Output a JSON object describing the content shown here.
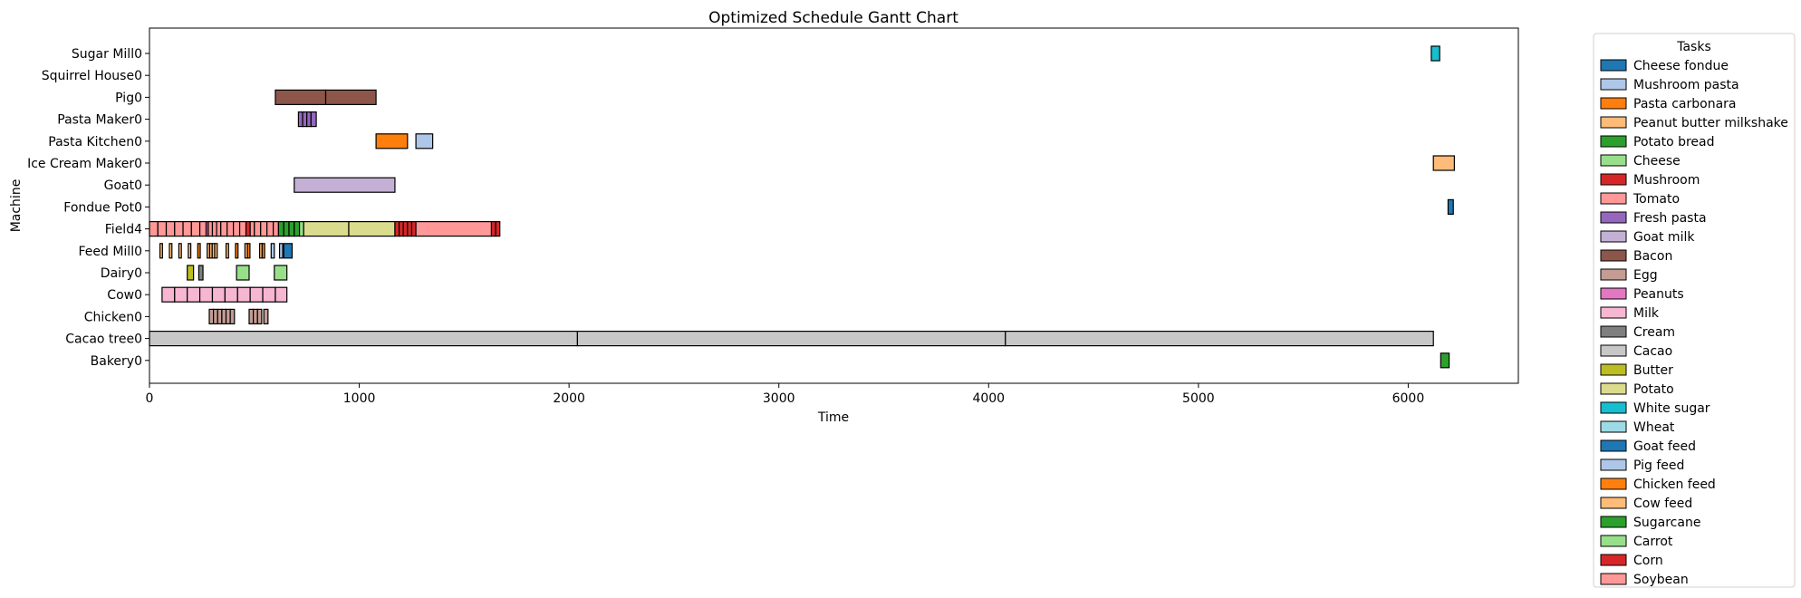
{
  "chart_data": {
    "type": "gantt",
    "title": "Optimized Schedule Gantt Chart",
    "xlabel": "Time",
    "ylabel": "Machine",
    "xlim": [
      0,
      6525
    ],
    "xticks": [
      0,
      1000,
      2000,
      3000,
      4000,
      5000,
      6000
    ],
    "machines": [
      "Sugar Mill0",
      "Squirrel House0",
      "Pig0",
      "Pasta Maker0",
      "Pasta Kitchen0",
      "Ice Cream Maker0",
      "Goat0",
      "Fondue Pot0",
      "Field4",
      "Feed Mill0",
      "Dairy0",
      "Cow0",
      "Chicken0",
      "Cacao tree0",
      "Bakery0"
    ],
    "legend_title": "Tasks",
    "legend_position": "outside-right",
    "tasks": [
      {
        "name": "Cheese fondue",
        "color": "#1f77b4"
      },
      {
        "name": "Mushroom pasta",
        "color": "#aec7e8"
      },
      {
        "name": "Pasta carbonara",
        "color": "#ff7f0e"
      },
      {
        "name": "Peanut butter milkshake",
        "color": "#ffbb78"
      },
      {
        "name": "Potato bread",
        "color": "#2ca02c"
      },
      {
        "name": "Cheese",
        "color": "#98df8a"
      },
      {
        "name": "Mushroom",
        "color": "#d62728"
      },
      {
        "name": "Tomato",
        "color": "#ff9896"
      },
      {
        "name": "Fresh pasta",
        "color": "#9467bd"
      },
      {
        "name": "Goat milk",
        "color": "#c5b0d5"
      },
      {
        "name": "Bacon",
        "color": "#8c564b"
      },
      {
        "name": "Egg",
        "color": "#c49c94"
      },
      {
        "name": "Peanuts",
        "color": "#e377c2"
      },
      {
        "name": "Milk",
        "color": "#f7b6d2"
      },
      {
        "name": "Cream",
        "color": "#7f7f7f"
      },
      {
        "name": "Cacao",
        "color": "#c7c7c7"
      },
      {
        "name": "Butter",
        "color": "#bcbd22"
      },
      {
        "name": "Potato",
        "color": "#dbdb8d"
      },
      {
        "name": "White sugar",
        "color": "#17becf"
      },
      {
        "name": "Wheat",
        "color": "#9edae5"
      },
      {
        "name": "Goat feed",
        "color": "#1f77b4"
      },
      {
        "name": "Pig feed",
        "color": "#aec7e8"
      },
      {
        "name": "Chicken feed",
        "color": "#ff7f0e"
      },
      {
        "name": "Cow feed",
        "color": "#ffbb78"
      },
      {
        "name": "Sugarcane",
        "color": "#2ca02c"
      },
      {
        "name": "Carrot",
        "color": "#98df8a"
      },
      {
        "name": "Corn",
        "color": "#d62728"
      },
      {
        "name": "Soybean",
        "color": "#ff9896"
      }
    ],
    "bars": [
      {
        "machine": "Sugar Mill0",
        "task": "White sugar",
        "start": 6110,
        "end": 6150
      },
      {
        "machine": "Pig0",
        "task": "Bacon",
        "start": 600,
        "end": 840
      },
      {
        "machine": "Pig0",
        "task": "Bacon",
        "start": 840,
        "end": 1080
      },
      {
        "machine": "Pasta Maker0",
        "task": "Fresh pasta",
        "start": 710,
        "end": 730
      },
      {
        "machine": "Pasta Maker0",
        "task": "Fresh pasta",
        "start": 730,
        "end": 750
      },
      {
        "machine": "Pasta Maker0",
        "task": "Fresh pasta",
        "start": 750,
        "end": 770
      },
      {
        "machine": "Pasta Maker0",
        "task": "Fresh pasta",
        "start": 770,
        "end": 795
      },
      {
        "machine": "Pasta Kitchen0",
        "task": "Pasta carbonara",
        "start": 1080,
        "end": 1230
      },
      {
        "machine": "Pasta Kitchen0",
        "task": "Mushroom pasta",
        "start": 1270,
        "end": 1350
      },
      {
        "machine": "Ice Cream Maker0",
        "task": "Peanut butter milkshake",
        "start": 6120,
        "end": 6220
      },
      {
        "machine": "Goat0",
        "task": "Goat milk",
        "start": 690,
        "end": 1170
      },
      {
        "machine": "Fondue Pot0",
        "task": "Cheese fondue",
        "start": 6190,
        "end": 6215
      },
      {
        "machine": "Field4",
        "task": "Soybean",
        "start": 0,
        "end": 40
      },
      {
        "machine": "Field4",
        "task": "Soybean",
        "start": 40,
        "end": 80
      },
      {
        "machine": "Field4",
        "task": "Soybean",
        "start": 80,
        "end": 120
      },
      {
        "machine": "Field4",
        "task": "Soybean",
        "start": 120,
        "end": 160
      },
      {
        "machine": "Field4",
        "task": "Soybean",
        "start": 160,
        "end": 200
      },
      {
        "machine": "Field4",
        "task": "Soybean",
        "start": 200,
        "end": 240
      },
      {
        "machine": "Field4",
        "task": "Soybean",
        "start": 240,
        "end": 270
      },
      {
        "machine": "Field4",
        "task": "Peanuts",
        "start": 270,
        "end": 280
      },
      {
        "machine": "Field4",
        "task": "Soybean",
        "start": 280,
        "end": 300
      },
      {
        "machine": "Field4",
        "task": "Soybean",
        "start": 300,
        "end": 320
      },
      {
        "machine": "Field4",
        "task": "Soybean",
        "start": 320,
        "end": 340
      },
      {
        "machine": "Field4",
        "task": "Soybean",
        "start": 340,
        "end": 370
      },
      {
        "machine": "Field4",
        "task": "Soybean",
        "start": 370,
        "end": 400
      },
      {
        "machine": "Field4",
        "task": "Soybean",
        "start": 400,
        "end": 430
      },
      {
        "machine": "Field4",
        "task": "Soybean",
        "start": 430,
        "end": 460
      },
      {
        "machine": "Field4",
        "task": "Mushroom",
        "start": 460,
        "end": 480
      },
      {
        "machine": "Field4",
        "task": "Soybean",
        "start": 480,
        "end": 500
      },
      {
        "machine": "Field4",
        "task": "Soybean",
        "start": 500,
        "end": 530
      },
      {
        "machine": "Field4",
        "task": "Soybean",
        "start": 530,
        "end": 560
      },
      {
        "machine": "Field4",
        "task": "Soybean",
        "start": 560,
        "end": 590
      },
      {
        "machine": "Field4",
        "task": "Soybean",
        "start": 590,
        "end": 615
      },
      {
        "machine": "Field4",
        "task": "Sugarcane",
        "start": 615,
        "end": 640
      },
      {
        "machine": "Field4",
        "task": "Sugarcane",
        "start": 640,
        "end": 665
      },
      {
        "machine": "Field4",
        "task": "Sugarcane",
        "start": 665,
        "end": 690
      },
      {
        "machine": "Field4",
        "task": "Sugarcane",
        "start": 690,
        "end": 715
      },
      {
        "machine": "Field4",
        "task": "Carrot",
        "start": 715,
        "end": 735
      },
      {
        "machine": "Field4",
        "task": "Potato",
        "start": 735,
        "end": 950
      },
      {
        "machine": "Field4",
        "task": "Potato",
        "start": 950,
        "end": 1170
      },
      {
        "machine": "Field4",
        "task": "Mushroom",
        "start": 1170,
        "end": 1190
      },
      {
        "machine": "Field4",
        "task": "Mushroom",
        "start": 1190,
        "end": 1210
      },
      {
        "machine": "Field4",
        "task": "Mushroom",
        "start": 1210,
        "end": 1230
      },
      {
        "machine": "Field4",
        "task": "Mushroom",
        "start": 1230,
        "end": 1250
      },
      {
        "machine": "Field4",
        "task": "Mushroom",
        "start": 1250,
        "end": 1270
      },
      {
        "machine": "Field4",
        "task": "Tomato",
        "start": 1270,
        "end": 1630
      },
      {
        "machine": "Field4",
        "task": "Mushroom",
        "start": 1630,
        "end": 1650
      },
      {
        "machine": "Field4",
        "task": "Mushroom",
        "start": 1650,
        "end": 1670
      },
      {
        "machine": "Feed Mill0",
        "task": "Cow feed",
        "start": 50,
        "end": 62
      },
      {
        "machine": "Feed Mill0",
        "task": "Cow feed",
        "start": 95,
        "end": 107
      },
      {
        "machine": "Feed Mill0",
        "task": "Cow feed",
        "start": 140,
        "end": 152
      },
      {
        "machine": "Feed Mill0",
        "task": "Cow feed",
        "start": 185,
        "end": 197
      },
      {
        "machine": "Feed Mill0",
        "task": "Chicken feed",
        "start": 230,
        "end": 242
      },
      {
        "machine": "Feed Mill0",
        "task": "Cow feed",
        "start": 275,
        "end": 287
      },
      {
        "machine": "Feed Mill0",
        "task": "Cow feed",
        "start": 287,
        "end": 299
      },
      {
        "machine": "Feed Mill0",
        "task": "Cow feed",
        "start": 299,
        "end": 311
      },
      {
        "machine": "Feed Mill0",
        "task": "Cow feed",
        "start": 311,
        "end": 323
      },
      {
        "machine": "Feed Mill0",
        "task": "Cow feed",
        "start": 365,
        "end": 377
      },
      {
        "machine": "Feed Mill0",
        "task": "Chicken feed",
        "start": 410,
        "end": 422
      },
      {
        "machine": "Feed Mill0",
        "task": "Cow feed",
        "start": 455,
        "end": 467
      },
      {
        "machine": "Feed Mill0",
        "task": "Chicken feed",
        "start": 467,
        "end": 479
      },
      {
        "machine": "Feed Mill0",
        "task": "Cow feed",
        "start": 525,
        "end": 537
      },
      {
        "machine": "Feed Mill0",
        "task": "Chicken feed",
        "start": 537,
        "end": 549
      },
      {
        "machine": "Feed Mill0",
        "task": "Pig feed",
        "start": 580,
        "end": 595
      },
      {
        "machine": "Feed Mill0",
        "task": "Pig feed",
        "start": 620,
        "end": 635
      },
      {
        "machine": "Feed Mill0",
        "task": "Goat feed",
        "start": 640,
        "end": 680
      },
      {
        "machine": "Dairy0",
        "task": "Butter",
        "start": 180,
        "end": 210
      },
      {
        "machine": "Dairy0",
        "task": "Cream",
        "start": 235,
        "end": 255
      },
      {
        "machine": "Dairy0",
        "task": "Cheese",
        "start": 415,
        "end": 475
      },
      {
        "machine": "Dairy0",
        "task": "Cheese",
        "start": 595,
        "end": 655
      },
      {
        "machine": "Cow0",
        "task": "Milk",
        "start": 60,
        "end": 120
      },
      {
        "machine": "Cow0",
        "task": "Milk",
        "start": 120,
        "end": 180
      },
      {
        "machine": "Cow0",
        "task": "Milk",
        "start": 180,
        "end": 240
      },
      {
        "machine": "Cow0",
        "task": "Milk",
        "start": 240,
        "end": 300
      },
      {
        "machine": "Cow0",
        "task": "Milk",
        "start": 300,
        "end": 360
      },
      {
        "machine": "Cow0",
        "task": "Milk",
        "start": 360,
        "end": 420
      },
      {
        "machine": "Cow0",
        "task": "Milk",
        "start": 420,
        "end": 480
      },
      {
        "machine": "Cow0",
        "task": "Milk",
        "start": 480,
        "end": 540
      },
      {
        "machine": "Cow0",
        "task": "Milk",
        "start": 540,
        "end": 600
      },
      {
        "machine": "Cow0",
        "task": "Milk",
        "start": 600,
        "end": 655
      },
      {
        "machine": "Chicken0",
        "task": "Egg",
        "start": 285,
        "end": 305
      },
      {
        "machine": "Chicken0",
        "task": "Egg",
        "start": 305,
        "end": 325
      },
      {
        "machine": "Chicken0",
        "task": "Egg",
        "start": 325,
        "end": 345
      },
      {
        "machine": "Chicken0",
        "task": "Egg",
        "start": 345,
        "end": 365
      },
      {
        "machine": "Chicken0",
        "task": "Egg",
        "start": 365,
        "end": 385
      },
      {
        "machine": "Chicken0",
        "task": "Egg",
        "start": 385,
        "end": 405
      },
      {
        "machine": "Chicken0",
        "task": "Egg",
        "start": 475,
        "end": 495
      },
      {
        "machine": "Chicken0",
        "task": "Egg",
        "start": 495,
        "end": 515
      },
      {
        "machine": "Chicken0",
        "task": "Egg",
        "start": 515,
        "end": 535
      },
      {
        "machine": "Chicken0",
        "task": "Egg",
        "start": 545,
        "end": 565
      },
      {
        "machine": "Cacao tree0",
        "task": "Cacao",
        "start": 0,
        "end": 2040
      },
      {
        "machine": "Cacao tree0",
        "task": "Cacao",
        "start": 2040,
        "end": 4080
      },
      {
        "machine": "Cacao tree0",
        "task": "Cacao",
        "start": 4080,
        "end": 6120
      },
      {
        "machine": "Bakery0",
        "task": "Potato bread",
        "start": 6155,
        "end": 6195
      }
    ]
  }
}
